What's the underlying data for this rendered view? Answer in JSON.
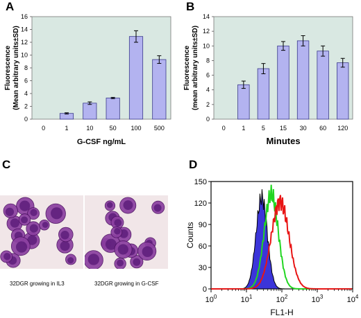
{
  "panels": {
    "a": "A",
    "b": "B",
    "c": "C",
    "d": "D"
  },
  "chart_data": [
    {
      "panel": "A",
      "type": "bar",
      "categories": [
        "0",
        "1",
        "10",
        "50",
        "100",
        "500"
      ],
      "values": [
        0,
        0.9,
        2.5,
        3.3,
        12.9,
        9.3
      ],
      "errors": [
        0,
        0.1,
        0.2,
        0.1,
        0.9,
        0.6
      ],
      "xlabel": "G-CSF  ng/mL",
      "ylabel": [
        "Fluorescence",
        "(Mean arbitrary units±SD)"
      ],
      "ylim": [
        0,
        16
      ],
      "yticks": [
        0,
        2,
        4,
        6,
        8,
        10,
        12,
        14,
        16
      ],
      "grid": false,
      "plot_bg": "#d9e8e2",
      "bar_color": "#b3b3f0"
    },
    {
      "panel": "B",
      "type": "bar",
      "categories": [
        "0",
        "1",
        "5",
        "15",
        "30",
        "60",
        "120"
      ],
      "values": [
        0,
        4.7,
        6.9,
        10.0,
        10.7,
        9.3,
        7.7
      ],
      "errors": [
        0,
        0.5,
        0.7,
        0.6,
        0.7,
        0.7,
        0.6
      ],
      "xlabel": "Minutes",
      "ylabel": [
        "Fluorescence",
        "(mean arbitrary units±SD)"
      ],
      "ylim": [
        0,
        14
      ],
      "yticks": [
        0,
        2,
        4,
        6,
        8,
        10,
        12,
        14
      ],
      "grid": false,
      "plot_bg": "#d9e8e2",
      "bar_color": "#b3b3f0"
    },
    {
      "panel": "D",
      "type": "histogram",
      "xlabel": "FL1-H",
      "ylabel": "Counts",
      "xscale": "log",
      "xlim": [
        1,
        10000
      ],
      "ylim": [
        0,
        150
      ],
      "yticks": [
        0,
        30,
        60,
        90,
        120,
        150
      ],
      "xticks_exponents": [
        0,
        1,
        2,
        3,
        4
      ],
      "xticks_base": "10",
      "series": [
        {
          "fill": "#3b35d9",
          "outline": "#000000",
          "peak_log": 1.43,
          "width_log": 0.16,
          "peak": 128
        },
        {
          "color": "#22d622",
          "peak_log": 1.7,
          "width_log": 0.2,
          "peak": 132
        },
        {
          "color": "#e81515",
          "peak_log": 1.95,
          "width_log": 0.25,
          "peak": 122
        }
      ]
    }
  ],
  "micrographs": {
    "left_caption": "32DGR growing in IL3",
    "right_caption": "32DGR growing in G-CSF",
    "cell_color": "#8b3fa0",
    "nucleus_color": "#5a1a78"
  }
}
